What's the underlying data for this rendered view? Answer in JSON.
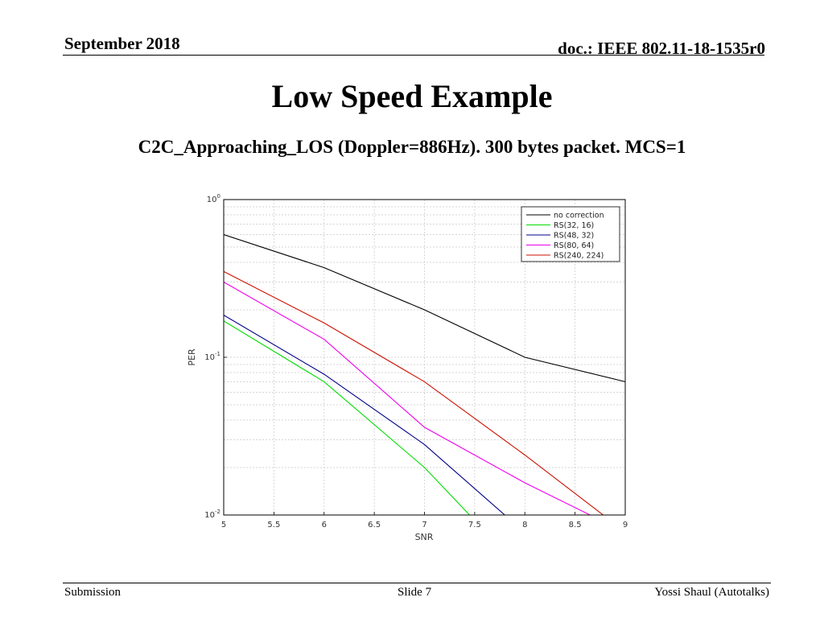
{
  "header": {
    "date": "September 2018",
    "doc": "doc.: IEEE 802.11-18-1535r0"
  },
  "slide": {
    "title": "Low Speed Example",
    "subtitle": "C2C_Approaching_LOS (Doppler=886Hz). 300 bytes packet. MCS=1"
  },
  "footer": {
    "left": "Submission",
    "center": "Slide 7",
    "right": "Yossi Shaul (Autotalks)"
  },
  "chart_data": {
    "type": "line",
    "xlabel": "SNR",
    "ylabel": "PER",
    "xlim": [
      5,
      9
    ],
    "ylim": [
      0.01,
      1
    ],
    "yscale": "log",
    "grid": true,
    "legend_position": "top-right",
    "x_ticks": [
      "5",
      "5.5",
      "6",
      "6.5",
      "7",
      "7.5",
      "8",
      "8.5",
      "9"
    ],
    "y_ticks": [
      {
        "base": "10",
        "exp": "0"
      },
      {
        "base": "10",
        "exp": "-1"
      },
      {
        "base": "10",
        "exp": "-2"
      }
    ],
    "series": [
      {
        "name": "no correction",
        "color": "#000000",
        "x": [
          5,
          6,
          7,
          8,
          9
        ],
        "y": [
          0.6,
          0.37,
          0.2,
          0.1,
          0.07
        ]
      },
      {
        "name": "RS(32, 16)",
        "color": "#00dd00",
        "x": [
          5,
          6,
          7,
          7.45
        ],
        "y": [
          0.17,
          0.07,
          0.02,
          0.01
        ]
      },
      {
        "name": "RS(48, 32)",
        "color": "#000088",
        "x": [
          5,
          6,
          7,
          7.8
        ],
        "y": [
          0.185,
          0.078,
          0.028,
          0.01
        ]
      },
      {
        "name": "RS(80, 64)",
        "color": "#ee00ee",
        "x": [
          5,
          6,
          7,
          8,
          8.65
        ],
        "y": [
          0.3,
          0.13,
          0.036,
          0.016,
          0.01
        ]
      },
      {
        "name": "RS(240, 224)",
        "color": "#cc1100",
        "x": [
          5,
          6,
          7,
          8,
          8.78
        ],
        "y": [
          0.35,
          0.165,
          0.07,
          0.024,
          0.01
        ]
      }
    ]
  }
}
